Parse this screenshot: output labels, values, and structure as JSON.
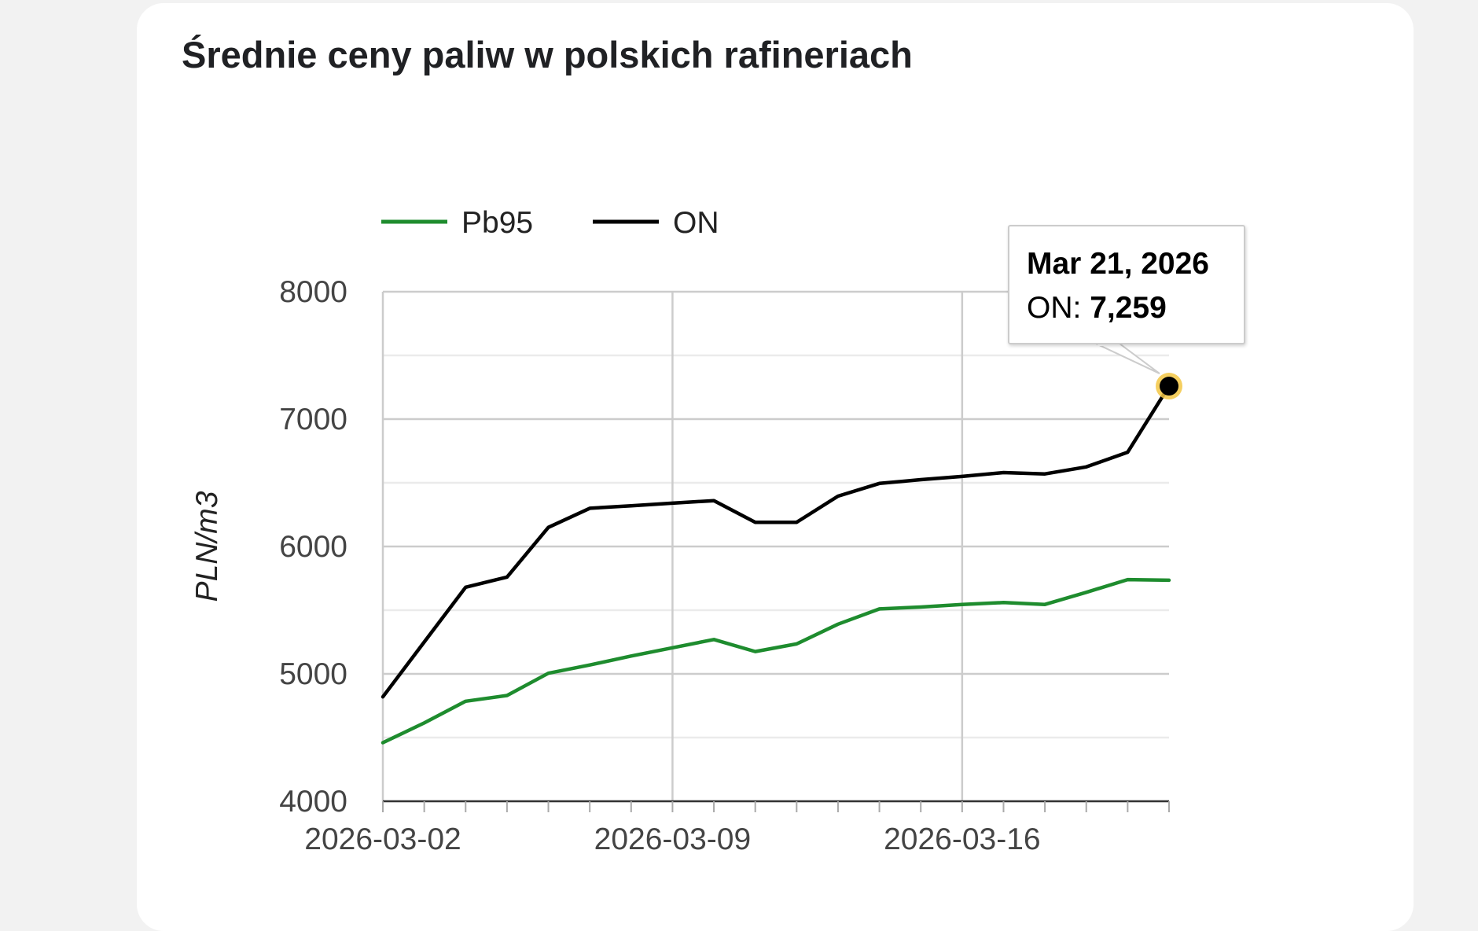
{
  "card": {
    "title": "Średnie ceny paliw w polskich rafineriach"
  },
  "chart_data": {
    "type": "line",
    "title": "Średnie ceny paliw w polskich rafineriach",
    "xlabel": "",
    "ylabel": "PLN/m3",
    "x": [
      "2026-03-02",
      "2026-03-03",
      "2026-03-04",
      "2026-03-05",
      "2026-03-06",
      "2026-03-07",
      "2026-03-08",
      "2026-03-09",
      "2026-03-10",
      "2026-03-11",
      "2026-03-12",
      "2026-03-13",
      "2026-03-14",
      "2026-03-15",
      "2026-03-16",
      "2026-03-17",
      "2026-03-18",
      "2026-03-19",
      "2026-03-20",
      "2026-03-21"
    ],
    "x_tick_labels": [
      "2026-03-02",
      "2026-03-09",
      "2026-03-16"
    ],
    "y_ticks": [
      4000,
      5000,
      6000,
      7000,
      8000
    ],
    "ylim": [
      4000,
      8000
    ],
    "grid": true,
    "legend_position": "top-left",
    "series": [
      {
        "name": "Pb95",
        "color": "#1e8c2e",
        "values": [
          4460,
          4615,
          4785,
          4830,
          5005,
          5070,
          5140,
          5205,
          5270,
          5175,
          5235,
          5390,
          5510,
          5525,
          5545,
          5560,
          5545,
          5640,
          5740,
          5735
        ]
      },
      {
        "name": "ON",
        "color": "#000000",
        "values": [
          4820,
          5250,
          5680,
          5760,
          6150,
          6300,
          6320,
          6340,
          6360,
          6190,
          6190,
          6395,
          6495,
          6525,
          6550,
          6580,
          6570,
          6625,
          6740,
          7259
        ]
      }
    ],
    "tooltip": {
      "date": "Mar 21, 2026",
      "series_label": "ON:",
      "value": "7,259"
    }
  }
}
